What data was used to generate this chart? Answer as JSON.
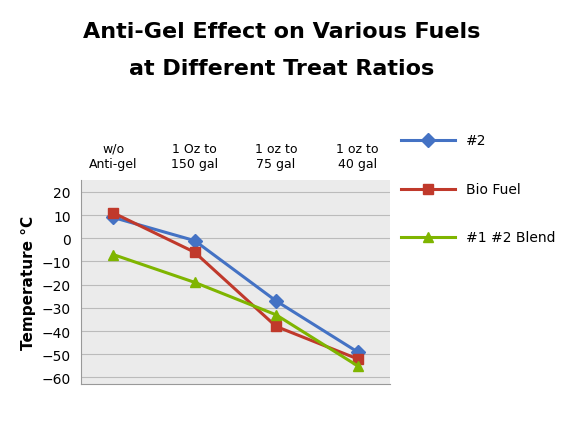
{
  "title_line1": "Anti-Gel Effect on Various Fuels",
  "title_line2": "at Different Treat Ratios",
  "ylabel": "Temperature °C",
  "x_positions": [
    0,
    1,
    2,
    3
  ],
  "x_labels": [
    "w/o\nAnti-gel",
    "1 Oz to\n150 gal",
    "1 oz to\n75 gal",
    "1 oz to\n40 gal"
  ],
  "series": [
    {
      "name": "#2",
      "values": [
        9,
        -1,
        -27,
        -49
      ],
      "color": "#4472C4",
      "marker": "D",
      "linewidth": 2.2,
      "markersize": 7
    },
    {
      "name": "Bio Fuel",
      "values": [
        11,
        -6,
        -38,
        -52
      ],
      "color": "#C0392B",
      "marker": "s",
      "linewidth": 2.2,
      "markersize": 7
    },
    {
      "name": "#1 #2 Blend",
      "values": [
        -7,
        -19,
        -33,
        -55
      ],
      "color": "#7FB500",
      "marker": "^",
      "linewidth": 2.2,
      "markersize": 7
    }
  ],
  "ylim": [
    -63,
    25
  ],
  "yticks": [
    -60,
    -50,
    -40,
    -30,
    -20,
    -10,
    0,
    10,
    20
  ],
  "bg_color": "#FFFFFF",
  "plot_bg_color": "#EBEBEB",
  "title_fontsize": 16,
  "label_fontsize": 11,
  "legend_fontsize": 10,
  "tick_fontsize": 10,
  "xtick_fontsize": 9
}
